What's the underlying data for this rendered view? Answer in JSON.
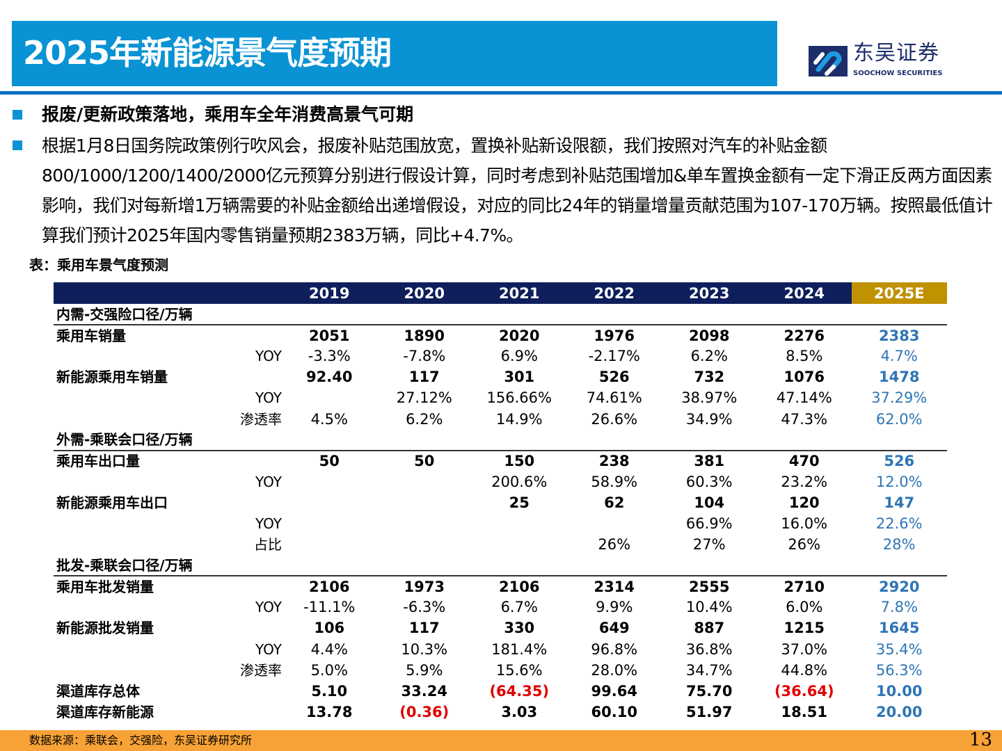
{
  "title": "2025年新能源景气度预期",
  "logo": {
    "cn": "东吴证券",
    "en": "SOOCHOW SECURITIES"
  },
  "heading": "报废/更新政策落地，乘用车全年消费高景气可期",
  "body": "根据1月8日国务院政策例行吹风会，报废补贴范围放宽，置换补贴新设限额，我们按照对汽车的补贴金额800/1000/1200/1400/2000亿元预算分别进行假设计算，同时考虑到补贴范围增加&单车置换金额有一定下滑正反两方面因素影响，我们对每新增1万辆需要的补贴金额给出递增假设，对应的同比24年的销量增量贡献范围为107-170万辆。按照最低值计算我们预计2025年国内零售销量预期2383万辆，同比+4.7%。",
  "caption": "表：乘用车景气度预测",
  "columns": [
    "2019",
    "2020",
    "2021",
    "2022",
    "2023",
    "2024",
    "2025E"
  ],
  "rows": [
    {
      "type": "section",
      "label": "内需-交强险口径/万辆"
    },
    {
      "label": "乘用车销量",
      "sub": "",
      "bold": true,
      "values": [
        "2051",
        "1890",
        "2020",
        "1976",
        "2098",
        "2276",
        "2383"
      ]
    },
    {
      "label": "",
      "sub": "YOY",
      "values": [
        "-3.3%",
        "-7.8%",
        "6.9%",
        "-2.17%",
        "6.2%",
        "8.5%",
        "4.7%"
      ]
    },
    {
      "label": "新能源乘用车销量",
      "sub": "",
      "bold": true,
      "values": [
        "92.40",
        "117",
        "301",
        "526",
        "732",
        "1076",
        "1478"
      ]
    },
    {
      "label": "",
      "sub": "YOY",
      "values": [
        "",
        "27.12%",
        "156.66%",
        "74.61%",
        "38.97%",
        "47.14%",
        "37.29%"
      ]
    },
    {
      "label": "",
      "sub": "渗透率",
      "values": [
        "4.5%",
        "6.2%",
        "14.9%",
        "26.6%",
        "34.9%",
        "47.3%",
        "62.0%"
      ]
    },
    {
      "type": "section",
      "label": "外需-乘联会口径/万辆"
    },
    {
      "label": "乘用车出口量",
      "sub": "",
      "bold": true,
      "values": [
        "50",
        "50",
        "150",
        "238",
        "381",
        "470",
        "526"
      ]
    },
    {
      "label": "",
      "sub": "YOY",
      "values": [
        "",
        "",
        "200.6%",
        "58.9%",
        "60.3%",
        "23.2%",
        "12.0%"
      ]
    },
    {
      "label": "新能源乘用车出口",
      "sub": "",
      "bold": true,
      "values": [
        "",
        "",
        "25",
        "62",
        "104",
        "120",
        "147"
      ]
    },
    {
      "label": "",
      "sub": "YOY",
      "values": [
        "",
        "",
        "",
        "",
        "66.9%",
        "16.0%",
        "22.6%"
      ]
    },
    {
      "label": "",
      "sub": "占比",
      "values": [
        "",
        "",
        "",
        "26%",
        "27%",
        "26%",
        "28%"
      ]
    },
    {
      "type": "section",
      "label": "批发-乘联会口径/万辆"
    },
    {
      "label": "乘用车批发销量",
      "sub": "",
      "bold": true,
      "values": [
        "2106",
        "1973",
        "2106",
        "2314",
        "2555",
        "2710",
        "2920"
      ]
    },
    {
      "label": "",
      "sub": "YOY",
      "values": [
        "-11.1%",
        "-6.3%",
        "6.7%",
        "9.9%",
        "10.4%",
        "6.0%",
        "7.8%"
      ]
    },
    {
      "label": "新能源批发销量",
      "sub": "",
      "bold": true,
      "values": [
        "106",
        "117",
        "330",
        "649",
        "887",
        "1215",
        "1645"
      ]
    },
    {
      "label": "",
      "sub": "YOY",
      "values": [
        "4.4%",
        "10.3%",
        "181.4%",
        "96.8%",
        "36.8%",
        "37.0%",
        "35.4%"
      ]
    },
    {
      "label": "",
      "sub": "渗透率",
      "values": [
        "5.0%",
        "5.9%",
        "15.6%",
        "28.0%",
        "34.7%",
        "44.8%",
        "56.3%"
      ]
    },
    {
      "label": "渠道库存总体",
      "sub": "",
      "bold": true,
      "values": [
        "5.10",
        "33.24",
        "(64.35)",
        "99.64",
        "75.70",
        "(36.64)",
        "10.00"
      ]
    },
    {
      "label": "渠道库存新能源",
      "sub": "",
      "bold": true,
      "values": [
        "13.78",
        "(0.36)",
        "3.03",
        "60.10",
        "51.97",
        "18.51",
        "20.00"
      ]
    }
  ],
  "colors": {
    "estimate": "#2f75b5",
    "negative": "#e00000",
    "header": "#0f1f5c",
    "estimate_header": "#c09100"
  },
  "footer": {
    "source": "数据来源：乘联会，交强险，东吴证券研究所",
    "page": "13"
  }
}
